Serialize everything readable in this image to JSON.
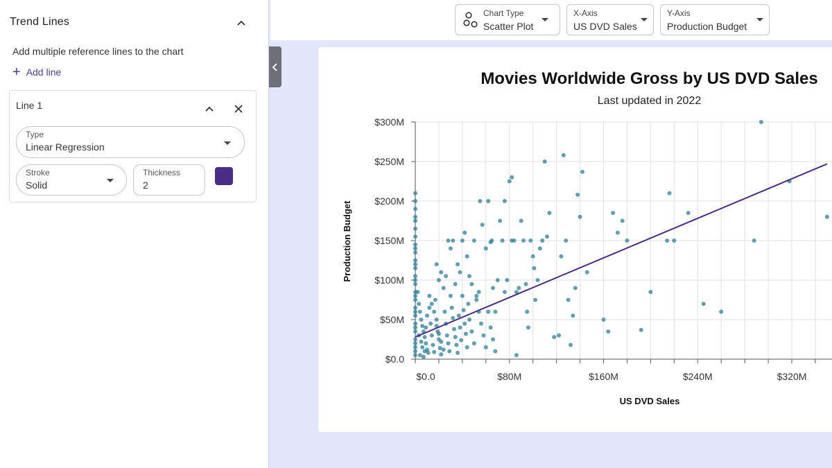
{
  "sidebar": {
    "title": "Trend Lines",
    "description": "Add multiple reference lines to the chart",
    "add_line_label": "Add line",
    "line": {
      "title": "Line 1",
      "type_label": "Type",
      "type_value": "Linear Regression",
      "stroke_label": "Stroke",
      "stroke_value": "Solid",
      "thickness_label": "Thickness",
      "thickness_value": "2",
      "color": "#4a2c84"
    }
  },
  "toolbar": {
    "chart_type_label": "Chart Type",
    "chart_type_value": "Scatter Plot",
    "x_axis_label": "X-Axis",
    "x_axis_value": "US DVD Sales",
    "y_axis_label": "Y-Axis",
    "y_axis_value": "Production Budget"
  },
  "chart": {
    "title": "Movies Worldwide Gross by US DVD Sales",
    "subtitle": "Last updated in 2022"
  },
  "chart_data": {
    "type": "scatter",
    "title": "Movies Worldwide Gross by US DVD Sales",
    "subtitle": "Last updated in 2022",
    "xlabel": "US DVD Sales",
    "ylabel": "Production Budget",
    "xlim": [
      0,
      360
    ],
    "ylim": [
      0,
      300
    ],
    "x_ticks": [
      0,
      80,
      160,
      240,
      320
    ],
    "x_tick_labels": [
      "$0.0",
      "$80M",
      "$160M",
      "$240M",
      "$320M"
    ],
    "y_ticks": [
      0,
      50,
      100,
      150,
      200,
      250,
      300
    ],
    "y_tick_labels": [
      "$0.0",
      "$50M",
      "$100M",
      "$150M",
      "$200M",
      "$250M",
      "$300M"
    ],
    "grid": true,
    "point_color": "#2f7f95",
    "trend_line": {
      "type": "linear regression",
      "color": "#4a2c84",
      "x": [
        0,
        350
      ],
      "y": [
        28,
        247
      ]
    },
    "points": [
      [
        0,
        210
      ],
      [
        0,
        200
      ],
      [
        0,
        175
      ],
      [
        0,
        165
      ],
      [
        0,
        155
      ],
      [
        0,
        145
      ],
      [
        0,
        135
      ],
      [
        0,
        125
      ],
      [
        0,
        115
      ],
      [
        0,
        105
      ],
      [
        0,
        95
      ],
      [
        0,
        85
      ],
      [
        0,
        75
      ],
      [
        0,
        65
      ],
      [
        0,
        55
      ],
      [
        0,
        45
      ],
      [
        0,
        35
      ],
      [
        0,
        25
      ],
      [
        0,
        15
      ],
      [
        0,
        5
      ],
      [
        0,
        190
      ],
      [
        0,
        180
      ],
      [
        0,
        140
      ],
      [
        0,
        120
      ],
      [
        0,
        100
      ],
      [
        0,
        80
      ],
      [
        0,
        60
      ],
      [
        0,
        40
      ],
      [
        0,
        20
      ],
      [
        0,
        10
      ],
      [
        2,
        85
      ],
      [
        3,
        70
      ],
      [
        4,
        60
      ],
      [
        5,
        50
      ],
      [
        6,
        42
      ],
      [
        7,
        35
      ],
      [
        8,
        28
      ],
      [
        9,
        20
      ],
      [
        10,
        12
      ],
      [
        11,
        8
      ],
      [
        3,
        30
      ],
      [
        5,
        22
      ],
      [
        6,
        15
      ],
      [
        8,
        10
      ],
      [
        4,
        5
      ],
      [
        7,
        3
      ],
      [
        9,
        40
      ],
      [
        10,
        55
      ],
      [
        12,
        65
      ],
      [
        13,
        45
      ],
      [
        14,
        30
      ],
      [
        15,
        18
      ],
      [
        16,
        9
      ],
      [
        17,
        75
      ],
      [
        18,
        50
      ],
      [
        19,
        35
      ],
      [
        20,
        25
      ],
      [
        21,
        14
      ],
      [
        22,
        6
      ],
      [
        12,
        80
      ],
      [
        14,
        70
      ],
      [
        16,
        60
      ],
      [
        18,
        42
      ],
      [
        20,
        32
      ],
      [
        22,
        22
      ],
      [
        24,
        12
      ],
      [
        25,
        60
      ],
      [
        26,
        45
      ],
      [
        27,
        30
      ],
      [
        28,
        20
      ],
      [
        29,
        10
      ],
      [
        30,
        80
      ],
      [
        31,
        65
      ],
      [
        32,
        52
      ],
      [
        33,
        38
      ],
      [
        34,
        28
      ],
      [
        35,
        18
      ],
      [
        36,
        8
      ],
      [
        37,
        55
      ],
      [
        38,
        40
      ],
      [
        39,
        24
      ],
      [
        40,
        80
      ],
      [
        41,
        62
      ],
      [
        42,
        45
      ],
      [
        43,
        32
      ],
      [
        44,
        15
      ],
      [
        45,
        70
      ],
      [
        46,
        50
      ],
      [
        48,
        35
      ],
      [
        50,
        20
      ],
      [
        52,
        80
      ],
      [
        54,
        60
      ],
      [
        56,
        45
      ],
      [
        58,
        30
      ],
      [
        60,
        15
      ],
      [
        62,
        60
      ],
      [
        64,
        40
      ],
      [
        66,
        25
      ],
      [
        68,
        10
      ],
      [
        18,
        120
      ],
      [
        20,
        100
      ],
      [
        22,
        110
      ],
      [
        24,
        90
      ],
      [
        26,
        105
      ],
      [
        28,
        150
      ],
      [
        30,
        140
      ],
      [
        32,
        150
      ],
      [
        34,
        95
      ],
      [
        36,
        120
      ],
      [
        38,
        110
      ],
      [
        40,
        150
      ],
      [
        42,
        160
      ],
      [
        44,
        130
      ],
      [
        46,
        105
      ],
      [
        48,
        95
      ],
      [
        50,
        150
      ],
      [
        52,
        75
      ],
      [
        54,
        85
      ],
      [
        55,
        200
      ],
      [
        57,
        170
      ],
      [
        60,
        140
      ],
      [
        62,
        200
      ],
      [
        65,
        150
      ],
      [
        66,
        90
      ],
      [
        68,
        60
      ],
      [
        70,
        100
      ],
      [
        72,
        175
      ],
      [
        74,
        150
      ],
      [
        76,
        85
      ],
      [
        78,
        100
      ],
      [
        80,
        225
      ],
      [
        82,
        150
      ],
      [
        84,
        150
      ],
      [
        86,
        85
      ],
      [
        88,
        90
      ],
      [
        90,
        175
      ],
      [
        92,
        150
      ],
      [
        94,
        95
      ],
      [
        95,
        60
      ],
      [
        96,
        40
      ],
      [
        98,
        150
      ],
      [
        100,
        130
      ],
      [
        101,
        115
      ],
      [
        102,
        75
      ],
      [
        104,
        100
      ],
      [
        106,
        140
      ],
      [
        108,
        150
      ],
      [
        110,
        250
      ],
      [
        112,
        155
      ],
      [
        114,
        185
      ],
      [
        118,
        28
      ],
      [
        122,
        30
      ],
      [
        124,
        130
      ],
      [
        126,
        258
      ],
      [
        128,
        150
      ],
      [
        130,
        75
      ],
      [
        132,
        18
      ],
      [
        134,
        55
      ],
      [
        136,
        90
      ],
      [
        138,
        208
      ],
      [
        140,
        180
      ],
      [
        142,
        237
      ],
      [
        146,
        110
      ],
      [
        160,
        50
      ],
      [
        164,
        35
      ],
      [
        168,
        185
      ],
      [
        172,
        160
      ],
      [
        176,
        175
      ],
      [
        180,
        150
      ],
      [
        192,
        37
      ],
      [
        200,
        85
      ],
      [
        214,
        150
      ],
      [
        216,
        210
      ],
      [
        220,
        150
      ],
      [
        232,
        185
      ],
      [
        245,
        70
      ],
      [
        260,
        60
      ],
      [
        288,
        150
      ],
      [
        294,
        300
      ],
      [
        318,
        225
      ],
      [
        350,
        180
      ],
      [
        82,
        230
      ],
      [
        76,
        200
      ],
      [
        64,
        148
      ],
      [
        86,
        5
      ]
    ]
  }
}
